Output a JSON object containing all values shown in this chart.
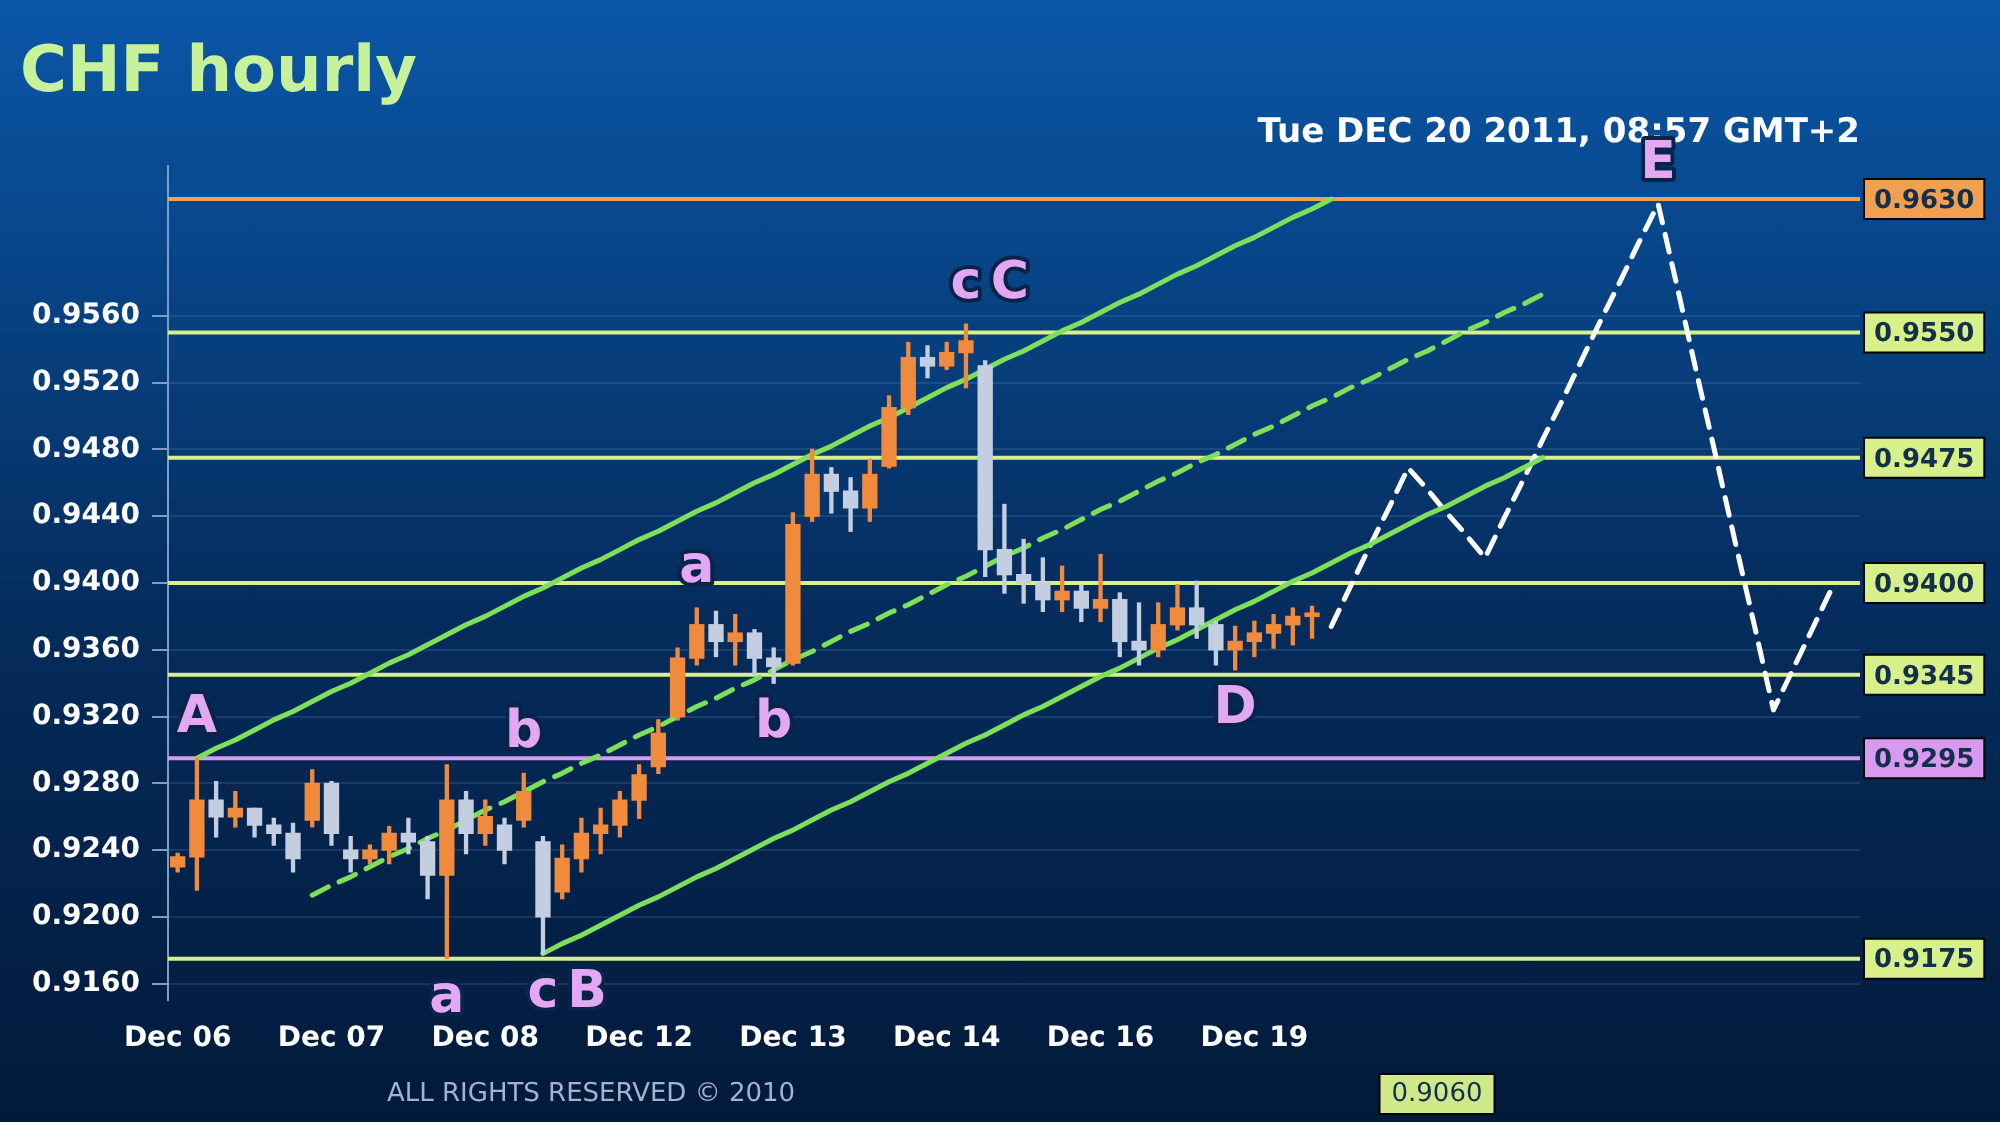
{
  "chart_data": {
    "type": "candlestick",
    "title": "CHF hourly",
    "subtitle": "Tue DEC 20 2011, 08:57 GMT+2",
    "categories": [
      "Dec 06",
      null,
      null,
      null,
      null,
      null,
      null,
      null,
      "Dec 07",
      null,
      null,
      null,
      null,
      null,
      null,
      null,
      "Dec 08",
      null,
      null,
      null,
      null,
      null,
      null,
      null,
      "Dec 12",
      null,
      null,
      null,
      null,
      null,
      null,
      null,
      "Dec 13",
      null,
      null,
      null,
      null,
      null,
      null,
      null,
      "Dec 14",
      null,
      null,
      null,
      null,
      null,
      null,
      null,
      "Dec 16",
      null,
      null,
      null,
      null,
      null,
      null,
      null,
      "Dec 19",
      null,
      null,
      null,
      null,
      null,
      null,
      null,
      null,
      null,
      null,
      null,
      null,
      null,
      null,
      null,
      null,
      null,
      null,
      null,
      null,
      null,
      null,
      null,
      null,
      null,
      null,
      null,
      null,
      null,
      null,
      null
    ],
    "ohlc": [
      [
        0.923,
        0.9238,
        0.9227,
        0.9236
      ],
      [
        0.9236,
        0.9295,
        0.9216,
        0.927
      ],
      [
        0.927,
        0.9281,
        0.9248,
        0.926
      ],
      [
        0.926,
        0.9275,
        0.9254,
        0.9265
      ],
      [
        0.9265,
        0.9265,
        0.9248,
        0.9255
      ],
      [
        0.9255,
        0.9259,
        0.9243,
        0.925
      ],
      [
        0.925,
        0.9256,
        0.9227,
        0.9235
      ],
      [
        0.9258,
        0.9288,
        0.9254,
        0.928
      ],
      [
        0.928,
        0.9281,
        0.9243,
        0.925
      ],
      [
        0.924,
        0.9248,
        0.9227,
        0.9235
      ],
      [
        0.9235,
        0.9243,
        0.9232,
        0.924
      ],
      [
        0.924,
        0.9254,
        0.9232,
        0.925
      ],
      [
        0.925,
        0.9259,
        0.9238,
        0.9245
      ],
      [
        0.9245,
        0.9248,
        0.9211,
        0.9225
      ],
      [
        0.9225,
        0.9291,
        0.9175,
        0.927
      ],
      [
        0.927,
        0.9275,
        0.9238,
        0.925
      ],
      [
        0.925,
        0.927,
        0.9243,
        0.926
      ],
      [
        0.9255,
        0.9259,
        0.9232,
        0.924
      ],
      [
        0.9258,
        0.9286,
        0.9254,
        0.9275
      ],
      [
        0.9245,
        0.9248,
        0.9178,
        0.92
      ],
      [
        0.9215,
        0.9243,
        0.9211,
        0.9235
      ],
      [
        0.9235,
        0.9259,
        0.9227,
        0.925
      ],
      [
        0.925,
        0.9265,
        0.9238,
        0.9255
      ],
      [
        0.9255,
        0.9275,
        0.9248,
        0.927
      ],
      [
        0.927,
        0.9291,
        0.9259,
        0.9285
      ],
      [
        0.929,
        0.9318,
        0.9286,
        0.931
      ],
      [
        0.932,
        0.9361,
        0.9318,
        0.9355
      ],
      [
        0.9355,
        0.9385,
        0.9351,
        0.9375
      ],
      [
        0.9375,
        0.9383,
        0.9356,
        0.9365
      ],
      [
        0.9365,
        0.9381,
        0.9351,
        0.937
      ],
      [
        0.937,
        0.9372,
        0.9345,
        0.9355
      ],
      [
        0.9355,
        0.9361,
        0.934,
        0.935
      ],
      [
        0.9352,
        0.9442,
        0.9351,
        0.9435
      ],
      [
        0.944,
        0.948,
        0.9437,
        0.9465
      ],
      [
        0.9465,
        0.9469,
        0.9442,
        0.9455
      ],
      [
        0.9455,
        0.9463,
        0.9431,
        0.9445
      ],
      [
        0.9445,
        0.9474,
        0.9437,
        0.9465
      ],
      [
        0.947,
        0.9512,
        0.9469,
        0.9505
      ],
      [
        0.9505,
        0.9544,
        0.9501,
        0.9535
      ],
      [
        0.9535,
        0.9542,
        0.9523,
        0.953
      ],
      [
        0.953,
        0.9544,
        0.9528,
        0.9538
      ],
      [
        0.9538,
        0.9555,
        0.9517,
        0.9545
      ],
      [
        0.953,
        0.9533,
        0.9404,
        0.942
      ],
      [
        0.942,
        0.9447,
        0.9394,
        0.9405
      ],
      [
        0.9405,
        0.9426,
        0.9388,
        0.94
      ],
      [
        0.94,
        0.9415,
        0.9383,
        0.939
      ],
      [
        0.939,
        0.941,
        0.9383,
        0.9395
      ],
      [
        0.9395,
        0.9399,
        0.9377,
        0.9385
      ],
      [
        0.9385,
        0.9417,
        0.9377,
        0.939
      ],
      [
        0.939,
        0.9394,
        0.9356,
        0.9365
      ],
      [
        0.9365,
        0.9388,
        0.9351,
        0.936
      ],
      [
        0.936,
        0.9388,
        0.9356,
        0.9375
      ],
      [
        0.9375,
        0.9399,
        0.9372,
        0.9385
      ],
      [
        0.9385,
        0.9401,
        0.9367,
        0.9375
      ],
      [
        0.9375,
        0.9377,
        0.9351,
        0.936
      ],
      [
        0.936,
        0.9374,
        0.9348,
        0.9365
      ],
      [
        0.9365,
        0.9377,
        0.9356,
        0.937
      ],
      [
        0.937,
        0.9381,
        0.9361,
        0.9375
      ],
      [
        0.9375,
        0.9385,
        0.9363,
        0.938
      ],
      [
        0.938,
        0.9386,
        0.9367,
        0.9382
      ],
      null,
      null,
      null,
      null,
      null,
      null,
      null,
      null,
      null,
      null,
      null,
      null,
      null,
      null,
      null,
      null,
      null,
      null,
      null,
      null,
      null,
      null,
      null,
      null,
      null,
      null,
      null,
      null
    ],
    "colors": [
      "#f08a3c",
      "#f08a3c",
      "#c3cfe0",
      "#f08a3c",
      "#c3cfe0",
      "#c3cfe0",
      "#c3cfe0",
      "#f08a3c",
      "#c3cfe0",
      "#c3cfe0",
      "#f08a3c",
      "#f08a3c",
      "#c3cfe0",
      "#c3cfe0",
      "#f08a3c",
      "#c3cfe0",
      "#f08a3c",
      "#c3cfe0",
      "#f08a3c",
      "#c3cfe0",
      "#f08a3c",
      "#f08a3c",
      "#f08a3c",
      "#f08a3c",
      "#f08a3c",
      "#f08a3c",
      "#f08a3c",
      "#f08a3c",
      "#c3cfe0",
      "#f08a3c",
      "#c3cfe0",
      "#c3cfe0",
      "#f08a3c",
      "#f08a3c",
      "#c3cfe0",
      "#c3cfe0",
      "#f08a3c",
      "#f08a3c",
      "#f08a3c",
      "#c3cfe0",
      "#f08a3c",
      "#f08a3c",
      "#c3cfe0",
      "#c3cfe0",
      "#c3cfe0",
      "#c3cfe0",
      "#f08a3c",
      "#c3cfe0",
      "#f08a3c",
      "#c3cfe0",
      "#c3cfe0",
      "#f08a3c",
      "#f08a3c",
      "#c3cfe0",
      "#c3cfe0",
      "#f08a3c",
      "#f08a3c",
      "#f08a3c",
      "#f08a3c",
      "#f08a3c",
      null,
      null,
      null,
      null,
      null,
      null,
      null,
      null,
      null,
      null,
      null,
      null,
      null,
      null,
      null,
      null,
      null,
      null,
      null,
      null,
      null,
      null,
      null,
      null,
      null,
      null,
      null,
      null
    ],
    "series": [
      {
        "type": "line",
        "color": "#7ee05a",
        "line_style": "solid",
        "values": [
          null,
          0.9295,
          0.9301,
          0.9306,
          0.9312,
          0.9318,
          0.9323,
          0.9329,
          0.9335,
          0.934,
          0.9346,
          0.9352,
          0.9357,
          0.9363,
          0.9369,
          0.9375,
          0.938,
          0.9386,
          0.9392,
          0.9397,
          0.9403,
          0.9409,
          0.9414,
          0.942,
          0.9426,
          0.9431,
          0.9437,
          0.9443,
          0.9448,
          0.9454,
          0.946,
          0.9465,
          0.9471,
          0.9477,
          0.9482,
          0.9488,
          0.9494,
          0.9499,
          0.9505,
          0.9511,
          0.9517,
          0.9522,
          0.9528,
          0.9534,
          0.9539,
          0.9545,
          0.9551,
          0.9556,
          0.9562,
          0.9568,
          0.9573,
          0.9579,
          0.9585,
          0.959,
          0.9596,
          0.9602,
          0.9607,
          0.9613,
          0.9619,
          0.9624,
          0.963,
          null,
          null,
          null,
          null,
          null,
          null,
          null,
          null,
          null,
          null,
          null,
          null,
          null,
          null,
          null,
          null,
          null,
          null,
          null,
          null,
          null,
          null,
          null,
          null,
          null,
          null,
          null
        ]
      },
      {
        "type": "line",
        "color": "#7ee05a",
        "line_style": "dashed",
        "values": [
          null,
          null,
          null,
          null,
          null,
          null,
          null,
          0.9213,
          0.9219,
          0.9224,
          0.923,
          0.9236,
          0.9241,
          0.9247,
          0.9252,
          0.9258,
          0.9264,
          0.9269,
          0.9275,
          0.9281,
          0.9286,
          0.9292,
          0.9297,
          0.9303,
          0.9309,
          0.9314,
          0.932,
          0.9326,
          0.9331,
          0.9337,
          0.9342,
          0.9348,
          0.9354,
          0.9359,
          0.9365,
          0.9371,
          0.9376,
          0.9382,
          0.9387,
          0.9393,
          0.9399,
          0.9404,
          0.941,
          0.9416,
          0.9421,
          0.9427,
          0.9432,
          0.9438,
          0.9444,
          0.9449,
          0.9455,
          0.9461,
          0.9466,
          0.9472,
          0.9477,
          0.9483,
          0.9489,
          0.9494,
          0.95,
          0.9506,
          0.9511,
          0.9517,
          0.9522,
          0.9528,
          0.9534,
          0.9539,
          0.9545,
          0.9551,
          0.9556,
          0.9562,
          0.9567,
          0.9573,
          null,
          null,
          null,
          null,
          null,
          null,
          null,
          null,
          null,
          null,
          null,
          null,
          null,
          null,
          null,
          null
        ]
      },
      {
        "type": "line",
        "color": "#7ee05a",
        "line_style": "solid",
        "values": [
          null,
          null,
          null,
          null,
          null,
          null,
          null,
          null,
          null,
          null,
          null,
          null,
          null,
          null,
          null,
          null,
          null,
          null,
          null,
          0.9178,
          0.9184,
          0.9189,
          0.9195,
          0.9201,
          0.9207,
          0.9212,
          0.9218,
          0.9224,
          0.9229,
          0.9235,
          0.9241,
          0.9247,
          0.9252,
          0.9258,
          0.9264,
          0.9269,
          0.9275,
          0.9281,
          0.9286,
          0.9292,
          0.9298,
          0.9304,
          0.9309,
          0.9315,
          0.9321,
          0.9326,
          0.9332,
          0.9338,
          0.9344,
          0.9349,
          0.9355,
          0.9361,
          0.9366,
          0.9372,
          0.9378,
          0.9384,
          0.9389,
          0.9395,
          0.9401,
          0.9406,
          0.9412,
          0.9418,
          0.9423,
          0.9429,
          0.9435,
          0.9441,
          0.9446,
          0.9452,
          0.9458,
          0.9463,
          0.9469,
          0.9475,
          null,
          null,
          null,
          null,
          null,
          null,
          null,
          null,
          null,
          null,
          null,
          null,
          null,
          null,
          null,
          null
        ]
      },
      {
        "type": "line",
        "color": "#ffffff",
        "line_style": "dashed",
        "values": [
          null,
          null,
          null,
          null,
          null,
          null,
          null,
          null,
          null,
          null,
          null,
          null,
          null,
          null,
          null,
          null,
          null,
          null,
          null,
          null,
          null,
          null,
          null,
          null,
          null,
          null,
          null,
          null,
          null,
          null,
          null,
          null,
          null,
          null,
          null,
          null,
          null,
          null,
          null,
          null,
          null,
          null,
          null,
          null,
          null,
          null,
          null,
          null,
          null,
          null,
          null,
          null,
          null,
          null,
          null,
          null,
          null,
          null,
          null,
          null,
          0.9374,
          0.9398,
          0.9422,
          0.9445,
          0.9469,
          0.9456,
          0.9442,
          0.9429,
          0.9415,
          0.9439,
          0.9462,
          0.9486,
          0.9509,
          0.9533,
          0.9557,
          0.958,
          0.9604,
          0.9627,
          0.9577,
          0.9526,
          0.9476,
          0.9425,
          0.9375,
          0.9324,
          0.9348,
          0.9372,
          0.9396,
          null
        ]
      }
    ],
    "ylim": [
      0.915,
      0.965
    ],
    "yticks": [
      {
        "value": 0.916,
        "label": "0.9160"
      },
      {
        "value": 0.92,
        "label": "0.9200"
      },
      {
        "value": 0.924,
        "label": "0.9240"
      },
      {
        "value": 0.928,
        "label": "0.9280"
      },
      {
        "value": 0.932,
        "label": "0.9320"
      },
      {
        "value": 0.936,
        "label": "0.9360"
      },
      {
        "value": 0.94,
        "label": "0.9400"
      },
      {
        "value": 0.944,
        "label": "0.9440"
      },
      {
        "value": 0.948,
        "label": "0.9480"
      },
      {
        "value": 0.952,
        "label": "0.9520"
      },
      {
        "value": 0.956,
        "label": "0.9560"
      }
    ],
    "ref_lines": [
      {
        "axis": "y",
        "value": 0.963,
        "label": "0.9630",
        "color": "#f0a050"
      },
      {
        "axis": "y",
        "value": 0.955,
        "label": "0.9550",
        "color": "#d8f08a"
      },
      {
        "axis": "y",
        "value": 0.9475,
        "label": "0.9475",
        "color": "#d8f08a"
      },
      {
        "axis": "y",
        "value": 0.94,
        "label": "0.9400",
        "color": "#d8f08a"
      },
      {
        "axis": "y",
        "value": 0.9345,
        "label": "0.9345",
        "color": "#d8f08a"
      },
      {
        "axis": "y",
        "value": 0.9295,
        "label": "0.9295",
        "color": "#d89af0"
      },
      {
        "axis": "y",
        "value": 0.9175,
        "label": "0.9175",
        "color": "#d8f08a"
      }
    ],
    "annotations": [
      {
        "text": "A",
        "y": 0.9295
      },
      {
        "text": "a",
        "y": 0.9175
      },
      {
        "text": "b",
        "y": 0.9286
      },
      {
        "text": "c",
        "y": 0.9178
      },
      {
        "text": "B",
        "y": 0.9178
      },
      {
        "text": "a",
        "y": 0.9385
      },
      {
        "text": "b",
        "y": 0.934
      },
      {
        "text": "c",
        "y": 0.9555
      },
      {
        "text": "C",
        "y": 0.9555
      },
      {
        "text": "D",
        "y": 0.9348
      },
      {
        "text": "E",
        "y": 0.9627
      },
      "ALL RIGHTS RESERVED © 2010",
      "0.9060"
    ],
    "grid": "y",
    "legend": false,
    "marker": "none"
  }
}
